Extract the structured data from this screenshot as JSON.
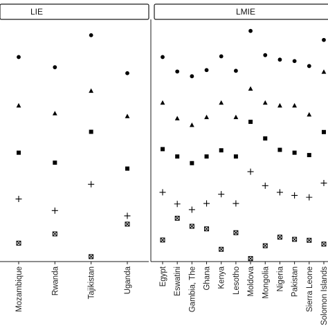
{
  "chart_data": [
    {
      "type": "scatter",
      "title": "LIE",
      "categories": [
        "Mozambique",
        "Rwanda",
        "Tajikistan",
        "Uganda"
      ],
      "series": [
        {
          "marker": "circle",
          "values": [
            0.853,
            0.81,
            0.945,
            0.785
          ]
        },
        {
          "marker": "triangle",
          "values": [
            0.648,
            0.615,
            0.71,
            0.603
          ]
        },
        {
          "marker": "square",
          "values": [
            0.45,
            0.408,
            0.538,
            0.383
          ]
        },
        {
          "marker": "plus",
          "values": [
            0.255,
            0.206,
            0.317,
            0.184
          ]
        },
        {
          "marker": "boxtimes",
          "values": [
            0.069,
            0.108,
            0.012,
            0.149
          ]
        }
      ],
      "ylim": [
        0,
        1
      ],
      "grid": false
    },
    {
      "type": "scatter",
      "title": "LMIE",
      "categories": [
        "Egypt",
        "Eswatini",
        "Gambia, The",
        "Ghana",
        "Kenya",
        "Lesotho",
        "Moldova",
        "Mongolia",
        "Nigeria",
        "Pakistan",
        "Sierra Leone",
        "Solomon Islands"
      ],
      "series": [
        {
          "marker": "circle",
          "values": [
            0.853,
            0.792,
            0.772,
            0.798,
            0.856,
            0.795,
            0.963,
            0.861,
            0.842,
            0.836,
            0.815,
            0.925
          ]
        },
        {
          "marker": "triangle",
          "values": [
            0.66,
            0.594,
            0.566,
            0.599,
            0.66,
            0.599,
            0.719,
            0.66,
            0.648,
            0.648,
            0.61,
            0.79
          ]
        },
        {
          "marker": "square",
          "values": [
            0.465,
            0.434,
            0.406,
            0.434,
            0.46,
            0.434,
            0.58,
            0.51,
            0.462,
            0.45,
            0.44,
            0.537
          ]
        },
        {
          "marker": "plus",
          "values": [
            0.283,
            0.234,
            0.21,
            0.236,
            0.275,
            0.236,
            0.37,
            0.311,
            0.283,
            0.27,
            0.262,
            0.322
          ]
        },
        {
          "marker": "boxtimes",
          "values": [
            0.082,
            0.174,
            0.14,
            0.129,
            0.043,
            0.113,
            0.004,
            0.058,
            0.094,
            0.085,
            0.081,
            0.065
          ]
        }
      ],
      "ylim": [
        0,
        1
      ],
      "grid": false
    }
  ]
}
